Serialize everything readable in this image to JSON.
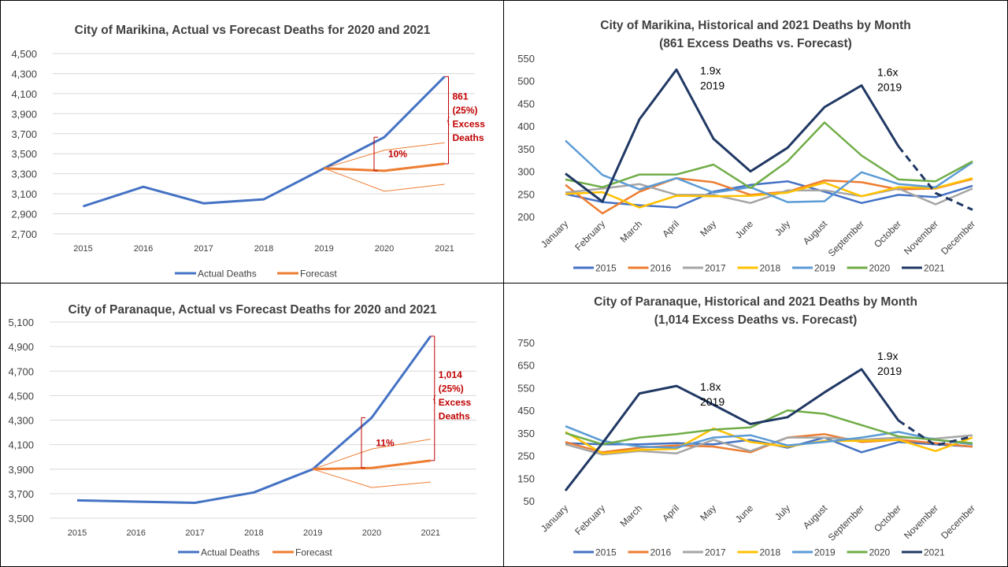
{
  "chart_data": [
    {
      "type": "line",
      "title": "City of Marikina, Actual vs Forecast Deaths for 2020 and 2021",
      "categories": [
        "2015",
        "2016",
        "2017",
        "2018",
        "2019",
        "2020",
        "2021"
      ],
      "ylim": [
        2700,
        4500
      ],
      "yticks": [
        "2,700",
        "2,900",
        "3,100",
        "3,300",
        "3,500",
        "3,700",
        "3,900",
        "4,100",
        "4,300",
        "4,500"
      ],
      "grid": true,
      "legend_position": "bottom",
      "series": [
        {
          "name": "Actual Deaths",
          "color": "#4472C4",
          "values": [
            2975,
            3170,
            3005,
            3045,
            3355,
            3665,
            4270
          ]
        },
        {
          "name": "Forecast",
          "color": "#ED7D31",
          "values": [
            null,
            null,
            null,
            null,
            3355,
            3330,
            3400
          ]
        }
      ],
      "bounds": {
        "color": "#ED7D31",
        "upper": [
          null,
          null,
          null,
          null,
          3355,
          3535,
          3610
        ],
        "lower": [
          null,
          null,
          null,
          null,
          3355,
          3125,
          3195
        ]
      },
      "annotations": {
        "pct": "10%",
        "excess": [
          "861",
          "(25%)",
          "Excess",
          "Deaths"
        ]
      }
    },
    {
      "type": "line",
      "title": "City of Marikina, Historical and 2021 Deaths by Month",
      "subtitle": "(861 Excess Deaths vs. Forecast)",
      "categories": [
        "January",
        "February",
        "March",
        "April",
        "May",
        "June",
        "July",
        "August",
        "September",
        "October",
        "November",
        "December"
      ],
      "ylim": [
        200,
        550
      ],
      "yticks": [
        "200",
        "250",
        "300",
        "350",
        "400",
        "450",
        "500",
        "550"
      ],
      "grid": false,
      "legend_position": "bottom",
      "series": [
        {
          "name": "2015",
          "color": "#4472C4",
          "values": [
            250,
            232,
            225,
            220,
            255,
            270,
            278,
            255,
            230,
            248,
            243,
            268
          ]
        },
        {
          "name": "2016",
          "color": "#ED7D31",
          "values": [
            270,
            207,
            255,
            285,
            276,
            248,
            255,
            280,
            276,
            260,
            262,
            283
          ]
        },
        {
          "name": "2017",
          "color": "#A5A5A5",
          "values": [
            253,
            262,
            272,
            248,
            248,
            230,
            258,
            258,
            245,
            262,
            227,
            262
          ]
        },
        {
          "name": "2018",
          "color": "#FFC000",
          "values": [
            250,
            254,
            220,
            246,
            245,
            246,
            253,
            275,
            245,
            265,
            263,
            285
          ]
        },
        {
          "name": "2019",
          "color": "#5B9BD5",
          "values": [
            368,
            292,
            260,
            285,
            253,
            265,
            232,
            234,
            298,
            272,
            265,
            320
          ]
        },
        {
          "name": "2020",
          "color": "#70AD47",
          "values": [
            282,
            265,
            293,
            293,
            315,
            263,
            322,
            408,
            335,
            282,
            278,
            322
          ]
        },
        {
          "name": "2021",
          "color": "#203864",
          "values": [
            295,
            233,
            415,
            525,
            372,
            300,
            352,
            442,
            490,
            355,
            252,
            215
          ],
          "dashed_from_index": 9
        }
      ],
      "annotations": [
        {
          "lines": [
            "1.9x",
            "2019"
          ]
        },
        {
          "lines": [
            "1.6x",
            "2019"
          ]
        }
      ]
    },
    {
      "type": "line",
      "title": "City of Paranaque, Actual vs Forecast Deaths for 2020 and 2021",
      "categories": [
        "2015",
        "2016",
        "2017",
        "2018",
        "2019",
        "2020",
        "2021"
      ],
      "ylim": [
        3500,
        5100
      ],
      "yticks": [
        "3,500",
        "3,700",
        "3,900",
        "4,100",
        "4,300",
        "4,500",
        "4,700",
        "4,900",
        "5,100"
      ],
      "grid": true,
      "legend_position": "bottom",
      "series": [
        {
          "name": "Actual Deaths",
          "color": "#4472C4",
          "values": [
            3645,
            3635,
            3625,
            3710,
            3900,
            4320,
            4985
          ]
        },
        {
          "name": "Forecast",
          "color": "#ED7D31",
          "values": [
            null,
            null,
            null,
            null,
            3900,
            3910,
            3970
          ]
        }
      ],
      "bounds": {
        "color": "#ED7D31",
        "upper": [
          null,
          null,
          null,
          null,
          3900,
          4065,
          4145
        ],
        "lower": [
          null,
          null,
          null,
          null,
          3900,
          3750,
          3795
        ]
      },
      "annotations": {
        "pct": "11%",
        "excess": [
          "1,014",
          "(25%)",
          "Excess",
          "Deaths"
        ]
      }
    },
    {
      "type": "line",
      "title": "City of Paranaque, Historical and 2021 Deaths by Month",
      "subtitle": "(1,014 Excess Deaths vs. Forecast)",
      "categories": [
        "January",
        "February",
        "March",
        "April",
        "May",
        "June",
        "July",
        "August",
        "September",
        "October",
        "November",
        "December"
      ],
      "ylim": [
        50,
        750
      ],
      "yticks": [
        "50",
        "150",
        "250",
        "350",
        "450",
        "550",
        "650",
        "750"
      ],
      "grid": false,
      "legend_position": "bottom",
      "series": [
        {
          "name": "2015",
          "color": "#4472C4",
          "values": [
            305,
            300,
            300,
            305,
            300,
            320,
            285,
            330,
            265,
            310,
            300,
            290
          ]
        },
        {
          "name": "2016",
          "color": "#ED7D31",
          "values": [
            310,
            265,
            285,
            295,
            290,
            265,
            330,
            345,
            310,
            320,
            305,
            290
          ]
        },
        {
          "name": "2017",
          "color": "#A5A5A5",
          "values": [
            300,
            255,
            270,
            260,
            320,
            270,
            330,
            330,
            320,
            330,
            325,
            340
          ]
        },
        {
          "name": "2018",
          "color": "#FFC000",
          "values": [
            355,
            260,
            275,
            280,
            370,
            310,
            290,
            315,
            315,
            320,
            270,
            330
          ]
        },
        {
          "name": "2019",
          "color": "#5B9BD5",
          "values": [
            380,
            315,
            290,
            285,
            330,
            340,
            295,
            310,
            330,
            355,
            320,
            300
          ]
        },
        {
          "name": "2020",
          "color": "#70AD47",
          "values": [
            350,
            300,
            330,
            345,
            365,
            375,
            450,
            435,
            385,
            335,
            320,
            305
          ]
        },
        {
          "name": "2021",
          "color": "#203864",
          "values": [
            95,
            305,
            525,
            558,
            475,
            390,
            420,
            530,
            632,
            405,
            295,
            335
          ],
          "dashed_from_index": 9
        }
      ],
      "annotations": [
        {
          "lines": [
            "1.8x",
            "2019"
          ]
        },
        {
          "lines": [
            "1.9x",
            "2019"
          ]
        }
      ]
    }
  ]
}
